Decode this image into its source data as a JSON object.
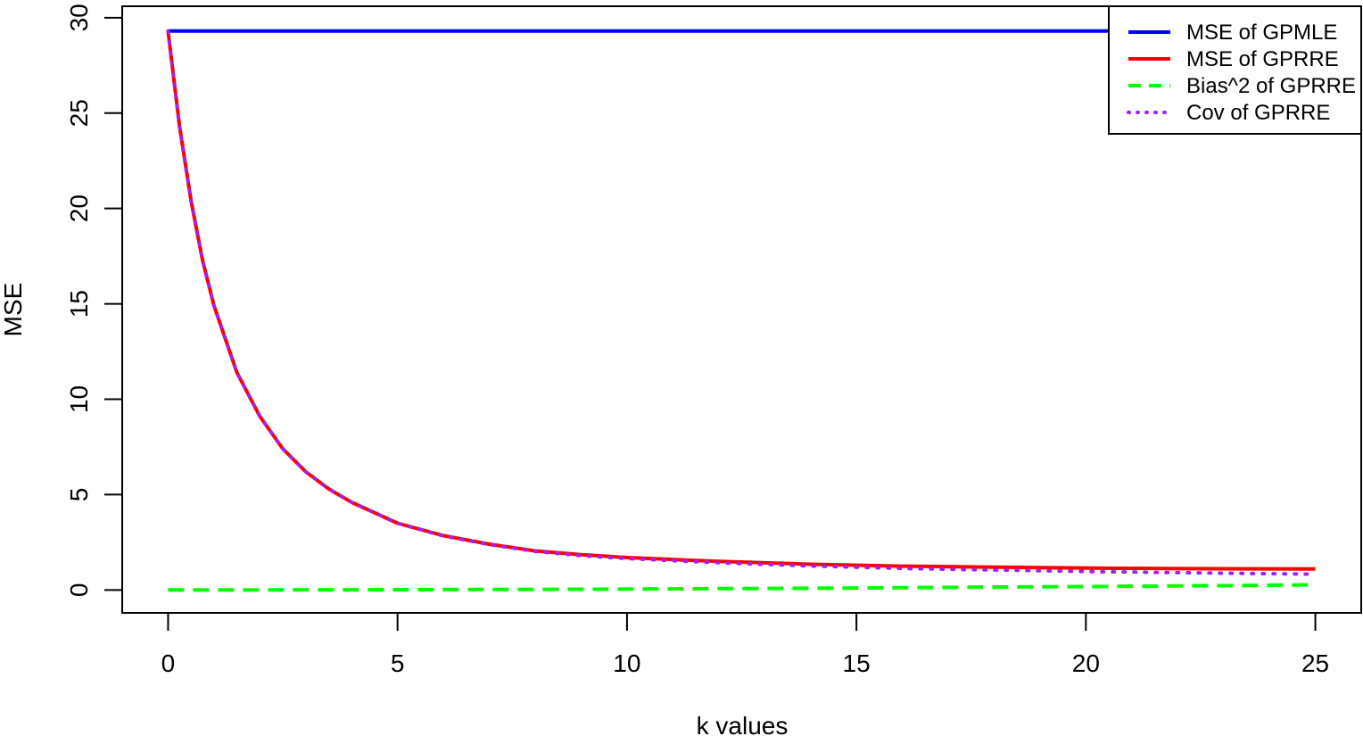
{
  "chart_data": {
    "type": "line",
    "title": "",
    "xlabel": "k values",
    "ylabel": "MSE",
    "xlim": [
      -1,
      26
    ],
    "ylim": [
      -1.2,
      30.6
    ],
    "xticks": [
      0,
      5,
      10,
      15,
      20,
      25
    ],
    "yticks": [
      0,
      5,
      10,
      15,
      20,
      25,
      30
    ],
    "grid": false,
    "legend_position": "top-right",
    "series": [
      {
        "name": "MSE of GPMLE",
        "color": "#0000ff",
        "style": "solid",
        "x": [
          0,
          25
        ],
        "y": [
          29.3,
          29.3
        ]
      },
      {
        "name": "MSE of GPRRE",
        "color": "#ff0000",
        "style": "solid",
        "x": [
          0,
          0.25,
          0.5,
          0.75,
          1,
          1.5,
          2,
          2.5,
          3,
          3.5,
          4,
          5,
          6,
          7,
          8,
          9,
          10,
          12,
          14,
          16,
          18,
          20,
          22,
          25
        ],
        "y": [
          29.3,
          24.3,
          20.4,
          17.3,
          14.9,
          11.4,
          9.1,
          7.4,
          6.2,
          5.3,
          4.6,
          3.5,
          2.85,
          2.4,
          2.05,
          1.85,
          1.7,
          1.5,
          1.35,
          1.25,
          1.2,
          1.15,
          1.12,
          1.1
        ]
      },
      {
        "name": "Bias^2 of GPRRE",
        "color": "#00ff00",
        "style": "dashed",
        "x": [
          0,
          2,
          4,
          6,
          8,
          10,
          12,
          14,
          16,
          18,
          20,
          22,
          25
        ],
        "y": [
          0,
          0.005,
          0.01,
          0.02,
          0.03,
          0.05,
          0.07,
          0.09,
          0.12,
          0.15,
          0.18,
          0.21,
          0.27
        ]
      },
      {
        "name": "Cov of GPRRE",
        "color": "#a020f0",
        "style": "dotted",
        "x": [
          0,
          0.25,
          0.5,
          0.75,
          1,
          1.5,
          2,
          2.5,
          3,
          3.5,
          4,
          5,
          6,
          7,
          8,
          9,
          10,
          12,
          14,
          16,
          18,
          20,
          22,
          25
        ],
        "y": [
          29.3,
          24.3,
          20.4,
          17.3,
          14.9,
          11.4,
          9.1,
          7.4,
          6.2,
          5.3,
          4.6,
          3.5,
          2.83,
          2.38,
          2.02,
          1.8,
          1.65,
          1.43,
          1.26,
          1.13,
          1.05,
          0.97,
          0.91,
          0.83
        ]
      }
    ]
  }
}
